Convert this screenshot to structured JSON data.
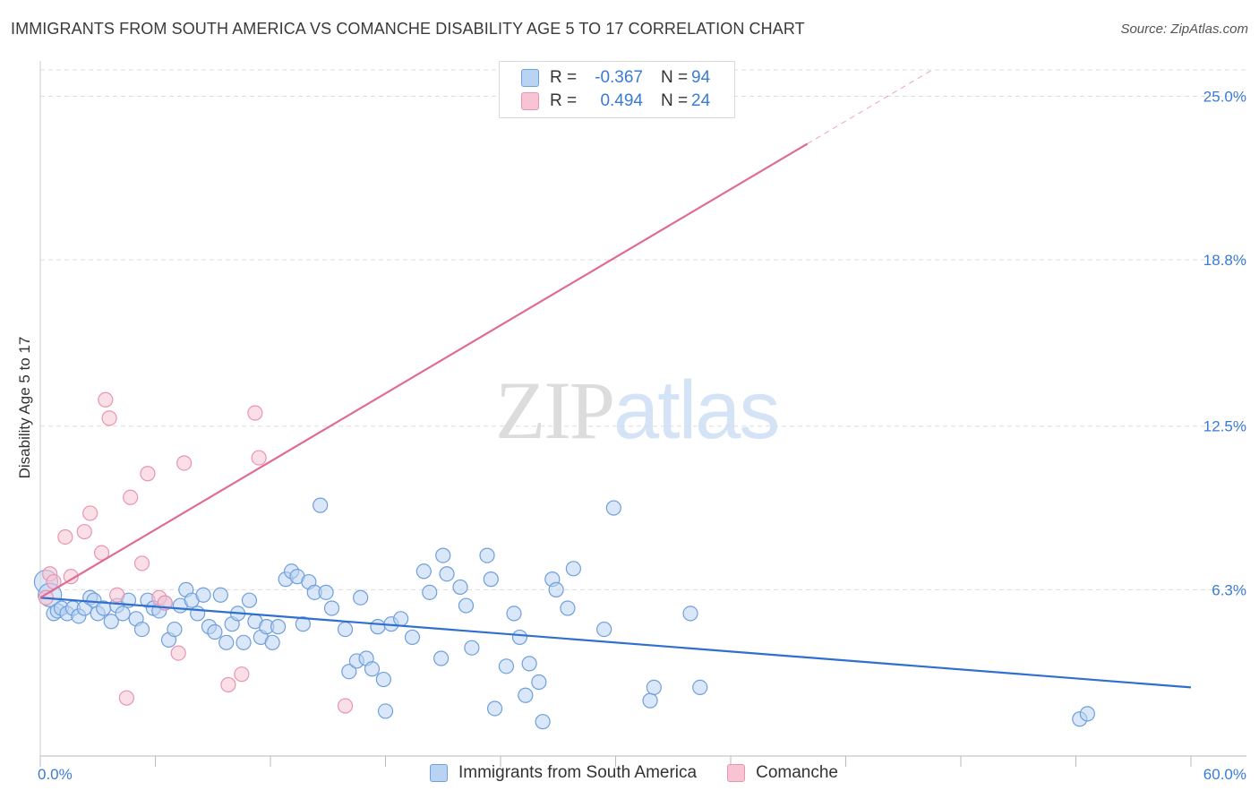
{
  "header": {
    "title": "IMMIGRANTS FROM SOUTH AMERICA VS COMANCHE DISABILITY AGE 5 TO 17 CORRELATION CHART",
    "source": "Source: ZipAtlas.com"
  },
  "watermark": {
    "zip": "ZIP",
    "atlas": "atlas"
  },
  "legend": {
    "rows": [
      {
        "r_label": "R =",
        "r_value": "-0.367",
        "n_label": "N =",
        "n_value": "94"
      },
      {
        "r_label": "R =",
        "r_value": "0.494",
        "n_label": "N =",
        "n_value": "24"
      }
    ]
  },
  "colors": {
    "blue_fill": "#b9d3f3",
    "blue_stroke": "#6f9fdc",
    "blue_line": "#2f6fcf",
    "pink_fill": "#f8c4d4",
    "pink_stroke": "#e994b0",
    "pink_line": "#e06a93",
    "tick_text": "#3a7bd5",
    "grid": "#dddddd"
  },
  "chart_data": {
    "type": "scatter",
    "title": "IMMIGRANTS FROM SOUTH AMERICA VS COMANCHE DISABILITY AGE 5 TO 17 CORRELATION CHART",
    "xlabel": "",
    "ylabel": "Disability Age 5 to 17",
    "xlim": [
      0,
      60
    ],
    "ylim": [
      0,
      26
    ],
    "x_tick_labels": [
      "0.0%",
      "60.0%"
    ],
    "y_ticks": [
      6.3,
      12.5,
      18.8,
      25.0
    ],
    "y_tick_labels": [
      "6.3%",
      "12.5%",
      "18.8%",
      "25.0%"
    ],
    "grid": true,
    "legend_placement": "top-center",
    "series": [
      {
        "name": "Immigrants from South America",
        "color": "#6f9fdc",
        "trend": {
          "x": [
            0,
            60
          ],
          "y": [
            6.0,
            2.6
          ],
          "style": "solid"
        },
        "points": [
          [
            0.3,
            6.6
          ],
          [
            0.5,
            6.1
          ],
          [
            0.7,
            5.4
          ],
          [
            0.9,
            5.5
          ],
          [
            1.1,
            5.6
          ],
          [
            1.4,
            5.4
          ],
          [
            1.7,
            5.6
          ],
          [
            2.0,
            5.3
          ],
          [
            2.3,
            5.6
          ],
          [
            2.6,
            6.0
          ],
          [
            2.8,
            5.9
          ],
          [
            3.0,
            5.4
          ],
          [
            3.3,
            5.6
          ],
          [
            3.7,
            5.1
          ],
          [
            4.0,
            5.7
          ],
          [
            4.3,
            5.4
          ],
          [
            4.6,
            5.9
          ],
          [
            5.0,
            5.2
          ],
          [
            5.3,
            4.8
          ],
          [
            5.6,
            5.9
          ],
          [
            5.9,
            5.6
          ],
          [
            6.2,
            5.5
          ],
          [
            6.5,
            5.8
          ],
          [
            6.7,
            4.4
          ],
          [
            7.0,
            4.8
          ],
          [
            7.3,
            5.7
          ],
          [
            7.6,
            6.3
          ],
          [
            7.9,
            5.9
          ],
          [
            8.2,
            5.4
          ],
          [
            8.5,
            6.1
          ],
          [
            8.8,
            4.9
          ],
          [
            9.1,
            4.7
          ],
          [
            9.4,
            6.1
          ],
          [
            9.7,
            4.3
          ],
          [
            10.0,
            5.0
          ],
          [
            10.3,
            5.4
          ],
          [
            10.6,
            4.3
          ],
          [
            10.9,
            5.9
          ],
          [
            11.2,
            5.1
          ],
          [
            11.5,
            4.5
          ],
          [
            11.8,
            4.9
          ],
          [
            12.1,
            4.3
          ],
          [
            12.4,
            4.9
          ],
          [
            12.8,
            6.7
          ],
          [
            13.1,
            7.0
          ],
          [
            13.4,
            6.8
          ],
          [
            13.7,
            5.0
          ],
          [
            14.0,
            6.6
          ],
          [
            14.3,
            6.2
          ],
          [
            14.6,
            9.5
          ],
          [
            14.9,
            6.2
          ],
          [
            15.2,
            5.6
          ],
          [
            15.9,
            4.8
          ],
          [
            16.1,
            3.2
          ],
          [
            16.5,
            3.6
          ],
          [
            16.7,
            6.0
          ],
          [
            17.0,
            3.7
          ],
          [
            17.3,
            3.3
          ],
          [
            17.6,
            4.9
          ],
          [
            17.9,
            2.9
          ],
          [
            18.0,
            1.7
          ],
          [
            18.3,
            5.0
          ],
          [
            18.8,
            5.2
          ],
          [
            19.4,
            4.5
          ],
          [
            20.0,
            7.0
          ],
          [
            20.3,
            6.2
          ],
          [
            20.9,
            3.7
          ],
          [
            21.0,
            7.6
          ],
          [
            21.2,
            6.9
          ],
          [
            21.9,
            6.4
          ],
          [
            22.2,
            5.7
          ],
          [
            22.5,
            4.1
          ],
          [
            23.3,
            7.6
          ],
          [
            23.5,
            6.7
          ],
          [
            23.7,
            1.8
          ],
          [
            24.3,
            3.4
          ],
          [
            24.7,
            5.4
          ],
          [
            25.0,
            4.5
          ],
          [
            25.3,
            2.3
          ],
          [
            25.5,
            3.5
          ],
          [
            26.0,
            2.8
          ],
          [
            26.2,
            1.3
          ],
          [
            26.7,
            6.7
          ],
          [
            26.9,
            6.3
          ],
          [
            27.5,
            5.6
          ],
          [
            27.8,
            7.1
          ],
          [
            29.4,
            4.8
          ],
          [
            29.9,
            9.4
          ],
          [
            31.8,
            2.1
          ],
          [
            32.0,
            2.6
          ],
          [
            33.9,
            5.4
          ],
          [
            34.4,
            2.6
          ],
          [
            54.2,
            1.4
          ],
          [
            54.6,
            1.6
          ]
        ]
      },
      {
        "name": "Comanche",
        "color": "#e994b0",
        "trend": {
          "x": [
            0,
            60
          ],
          "y": [
            6.0,
            31.8
          ],
          "style": "solid-then-dashed",
          "dash_start_x": 40
        },
        "points": [
          [
            0.3,
            6.0
          ],
          [
            0.5,
            6.9
          ],
          [
            0.7,
            6.6
          ],
          [
            1.3,
            8.3
          ],
          [
            1.6,
            6.8
          ],
          [
            2.3,
            8.5
          ],
          [
            2.6,
            9.2
          ],
          [
            3.2,
            7.7
          ],
          [
            3.4,
            13.5
          ],
          [
            3.6,
            12.8
          ],
          [
            4.0,
            6.1
          ],
          [
            4.5,
            2.2
          ],
          [
            4.7,
            9.8
          ],
          [
            5.3,
            7.3
          ],
          [
            5.6,
            10.7
          ],
          [
            6.2,
            6.0
          ],
          [
            6.5,
            5.8
          ],
          [
            7.2,
            3.9
          ],
          [
            7.5,
            11.1
          ],
          [
            9.8,
            2.7
          ],
          [
            10.5,
            3.1
          ],
          [
            11.2,
            13.0
          ],
          [
            11.4,
            11.3
          ],
          [
            15.9,
            1.9
          ]
        ]
      }
    ]
  },
  "bottom_legend": {
    "items": [
      {
        "label": "Immigrants from South America"
      },
      {
        "label": "Comanche"
      }
    ]
  }
}
